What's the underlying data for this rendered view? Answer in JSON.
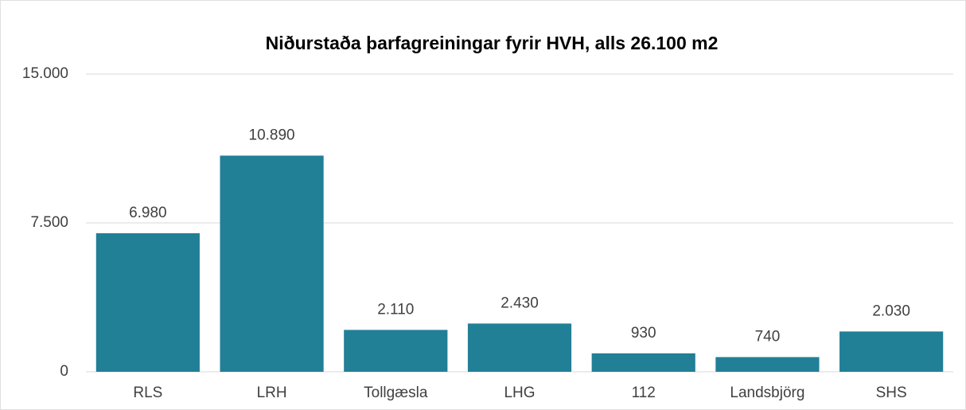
{
  "chart_data": {
    "type": "bar",
    "title": "Niðurstaða þarfagreiningar fyrir HVH, alls 26.100 m2",
    "categories": [
      "RLS",
      "LRH",
      "Tollgæsla",
      "LHG",
      "112",
      "Landsbjörg",
      "SHS"
    ],
    "values": [
      6980,
      10890,
      2110,
      2430,
      930,
      740,
      2030
    ],
    "value_labels": [
      "6.980",
      "10.890",
      "2.110",
      "2.430",
      "930",
      "740",
      "2.030"
    ],
    "color": "#217f96",
    "ylim": [
      0,
      15000
    ],
    "yticks": [
      0,
      {
        "value": 7500,
        "label": "7.500"
      },
      {
        "value": 15000,
        "label": "15.000"
      }
    ],
    "grid": true
  }
}
